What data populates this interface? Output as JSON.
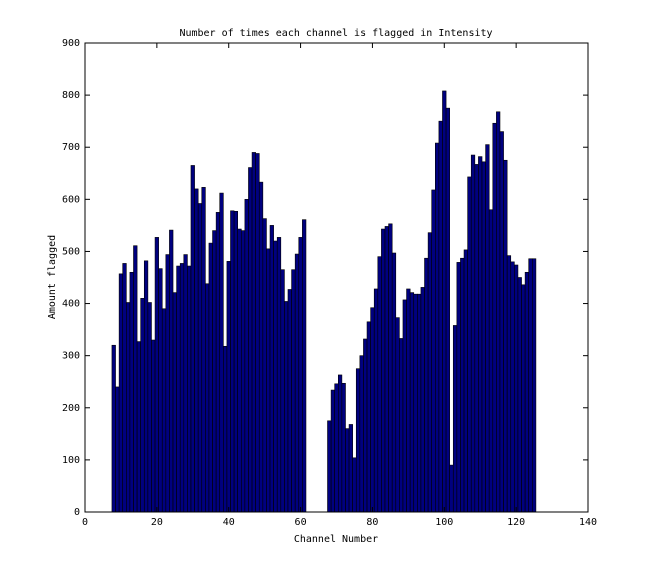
{
  "chart_data": {
    "type": "bar",
    "title": "Number of times each channel is flagged in Intensity",
    "x_label": "Channel Number",
    "y_label": "Amount flagged",
    "color": "#00007f",
    "edge_color": "#000000",
    "bar_width": 1,
    "x": [
      8,
      9,
      10,
      11,
      12,
      13,
      14,
      15,
      16,
      17,
      18,
      19,
      20,
      21,
      22,
      23,
      24,
      25,
      26,
      27,
      28,
      29,
      30,
      31,
      32,
      33,
      34,
      35,
      36,
      37,
      38,
      39,
      40,
      41,
      42,
      43,
      44,
      45,
      46,
      47,
      48,
      49,
      50,
      51,
      52,
      53,
      54,
      55,
      56,
      57,
      58,
      59,
      60,
      61,
      68,
      69,
      70,
      71,
      72,
      73,
      74,
      75,
      76,
      77,
      78,
      79,
      80,
      81,
      82,
      83,
      84,
      85,
      86,
      87,
      88,
      89,
      90,
      91,
      92,
      93,
      94,
      95,
      96,
      97,
      98,
      99,
      100,
      101,
      102,
      103,
      104,
      105,
      106,
      107,
      108,
      109,
      110,
      111,
      112,
      113,
      114,
      115,
      116,
      117,
      118,
      119,
      120,
      121,
      122,
      123,
      124,
      125
    ],
    "values": [
      320,
      240,
      457,
      477,
      402,
      460,
      511,
      327,
      410,
      482,
      402,
      330,
      527,
      467,
      390,
      494,
      541,
      421,
      472,
      477,
      494,
      472,
      665,
      620,
      592,
      623,
      438,
      516,
      540,
      575,
      612,
      318,
      481,
      578,
      577,
      543,
      540,
      600,
      661,
      690,
      688,
      633,
      563,
      505,
      550,
      520,
      527,
      465,
      404,
      427,
      465,
      495,
      527,
      561,
      175,
      234,
      246,
      263,
      247,
      160,
      168,
      104,
      275,
      300,
      332,
      365,
      392,
      428,
      490,
      543,
      548,
      553,
      497,
      373,
      333,
      407,
      428,
      421,
      418,
      418,
      431,
      487,
      536,
      618,
      708,
      750,
      808,
      775,
      90,
      358,
      479,
      487,
      503,
      643,
      685,
      667,
      682,
      672,
      705,
      580,
      746,
      768,
      730,
      675,
      492,
      480,
      474,
      450,
      436,
      460,
      486,
      486
    ],
    "xlim": [
      0,
      140
    ],
    "xticks": [
      0,
      20,
      40,
      60,
      80,
      100,
      120,
      140
    ],
    "ylim": [
      0,
      900
    ],
    "yticks": [
      0,
      100,
      200,
      300,
      400,
      500,
      600,
      700,
      800,
      900
    ]
  }
}
